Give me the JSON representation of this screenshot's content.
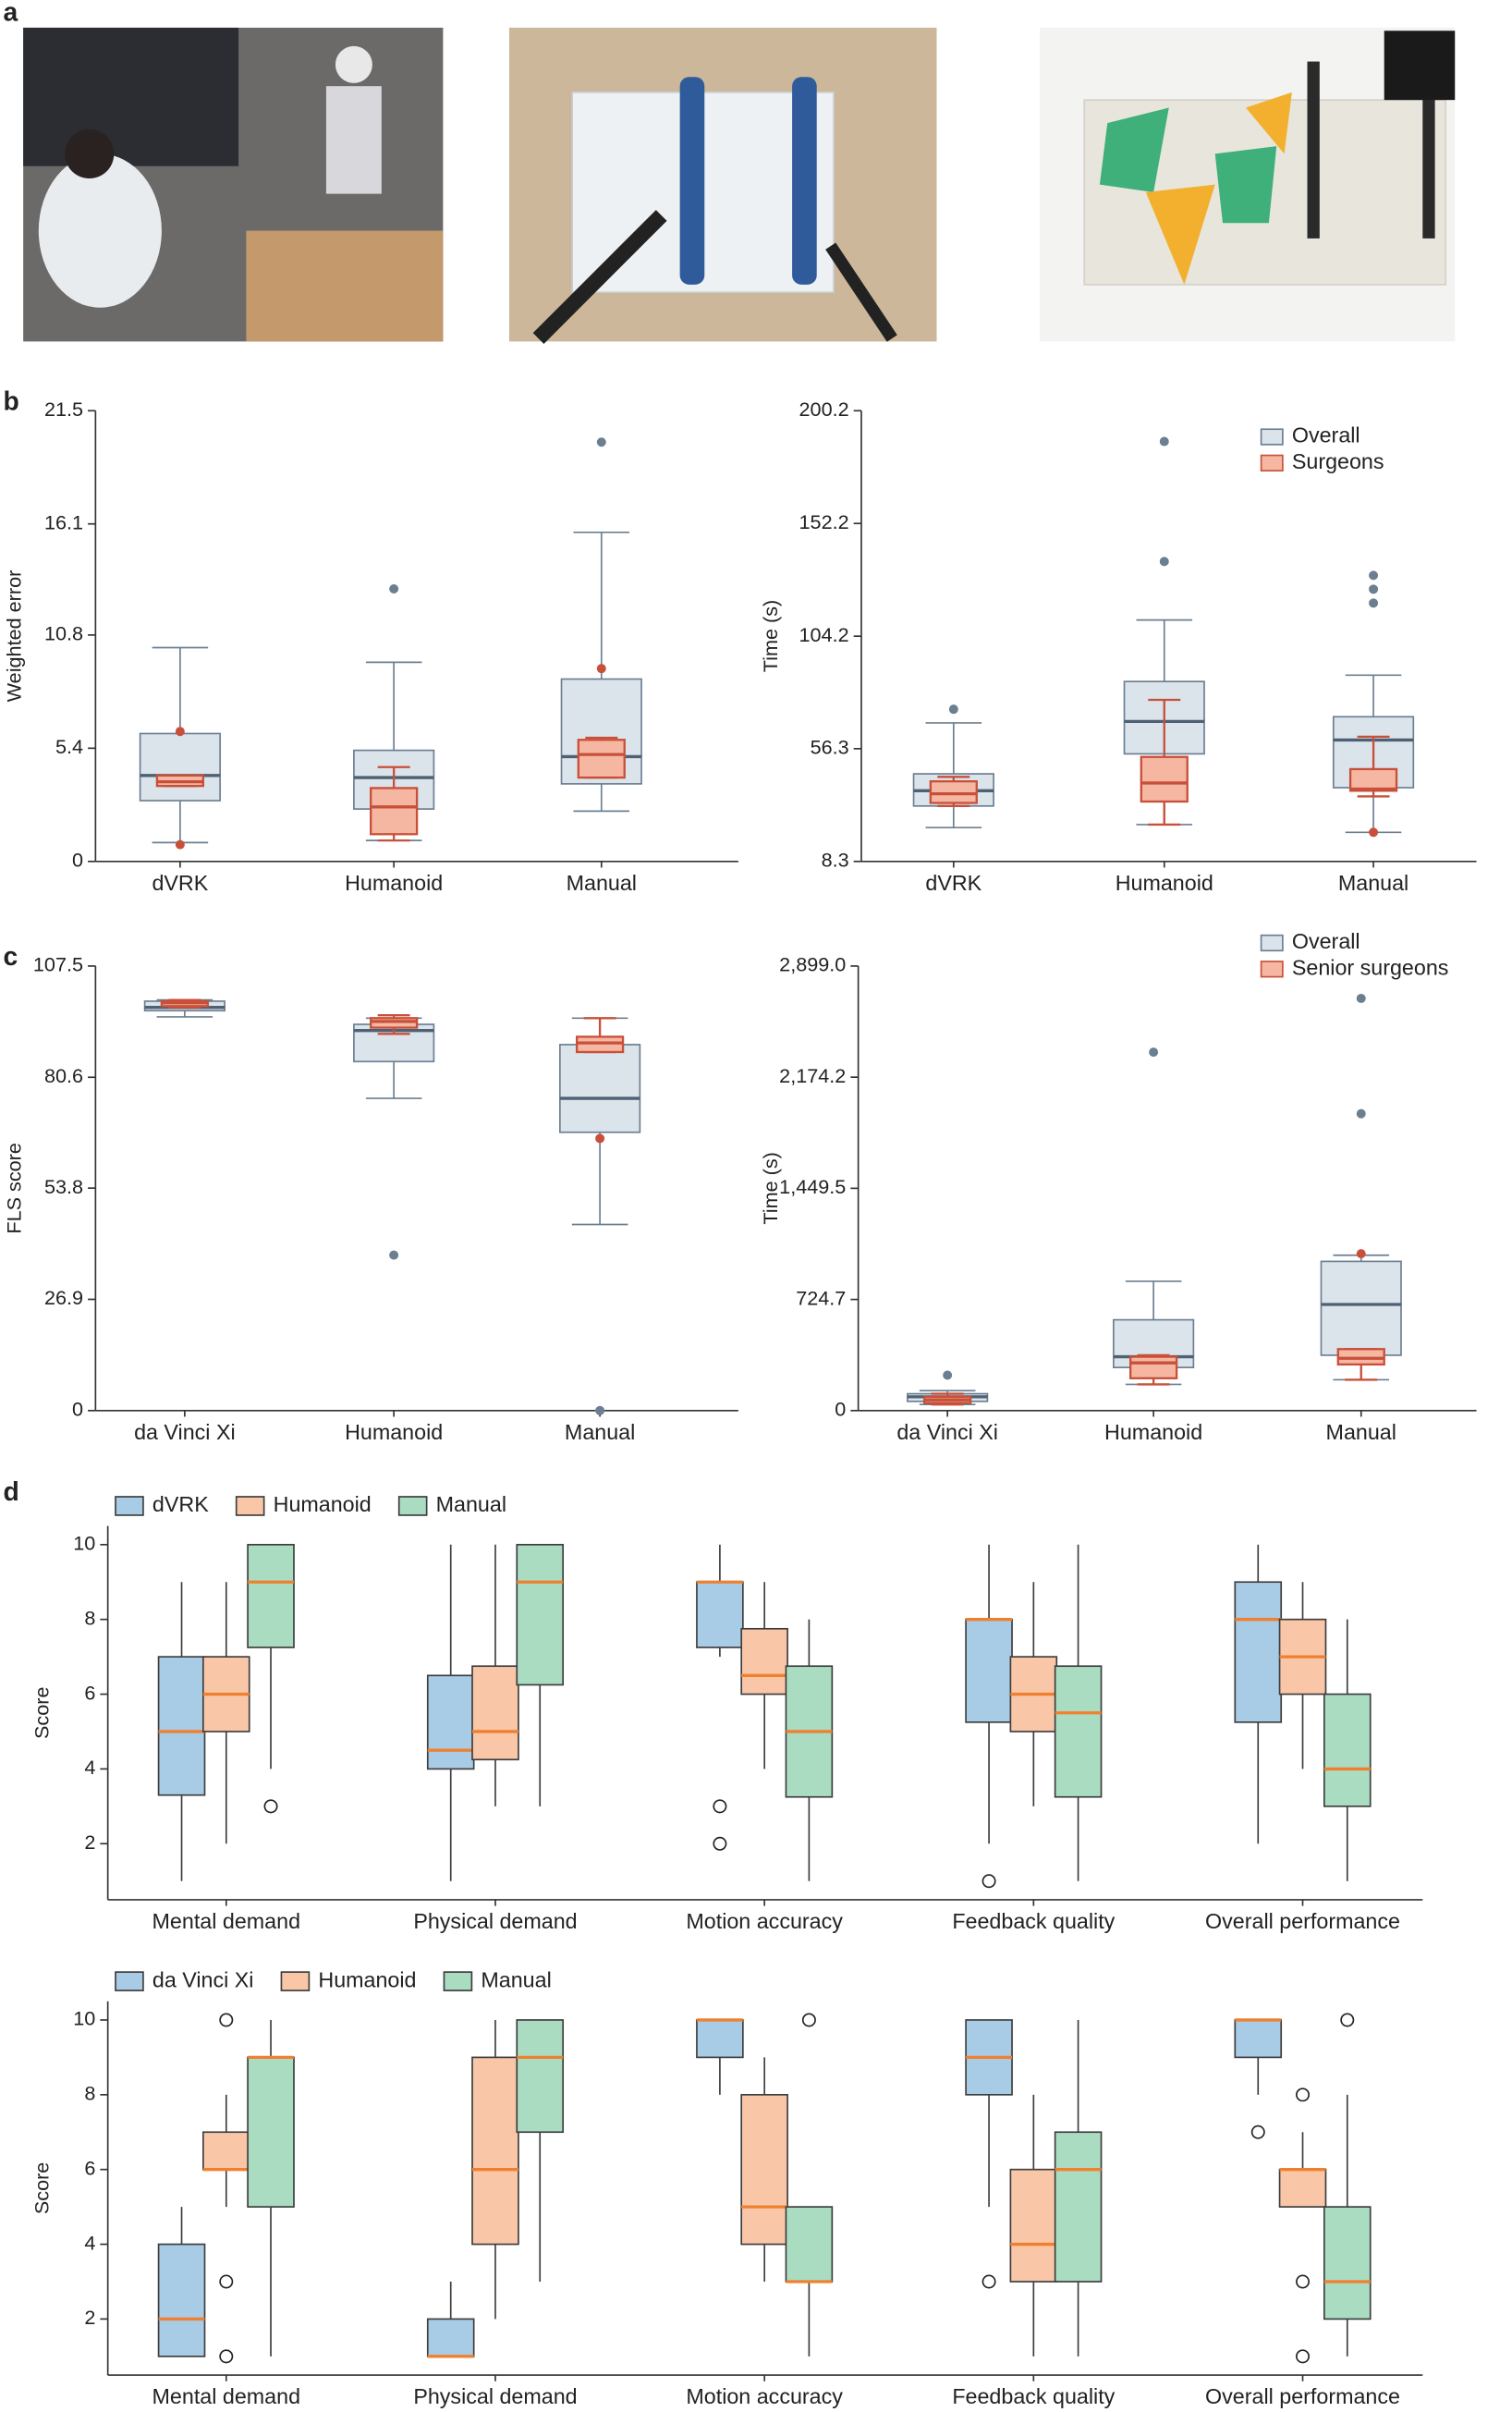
{
  "panel_labels": [
    "a",
    "b",
    "c",
    "d"
  ],
  "chart_data": [
    {
      "type": "box",
      "overlay": true,
      "ylabel": "Weighted error",
      "ylim": [
        0,
        21.5
      ],
      "yticks": [
        0,
        5.4,
        10.8,
        16.1,
        21.5
      ],
      "categories": [
        "dVRK",
        "Humanoid",
        "Manual"
      ],
      "series": [
        {
          "name": null,
          "color": "#dbe3eb",
          "edge": "#6b7f91",
          "median_color": "#4d6173",
          "boxes": [
            {
              "min": 0.9,
              "q1": 2.9,
              "median": 4.1,
              "q3": 6.1,
              "max": 10.2,
              "outliers": []
            },
            {
              "min": 1.0,
              "q1": 2.5,
              "median": 4.0,
              "q3": 5.3,
              "max": 9.5,
              "outliers": [
                13.0
              ]
            },
            {
              "min": 2.4,
              "q1": 3.7,
              "median": 5.0,
              "q3": 8.7,
              "max": 15.7,
              "outliers": [
                20.0
              ]
            }
          ]
        },
        {
          "name": null,
          "color": "#f5b7a1",
          "edge": "#c8503a",
          "median_color": "#c8503a",
          "boxes": [
            {
              "min": 3.6,
              "q1": 3.6,
              "median": 3.8,
              "q3": 4.1,
              "max": 4.1,
              "outliers": [
                6.2,
                0.8
              ]
            },
            {
              "min": 1.0,
              "q1": 1.3,
              "median": 2.6,
              "q3": 3.5,
              "max": 4.5,
              "outliers": []
            },
            {
              "min": 4.0,
              "q1": 4.0,
              "median": 5.1,
              "q3": 5.8,
              "max": 5.9,
              "outliers": [
                9.2
              ]
            }
          ]
        }
      ]
    },
    {
      "type": "box",
      "overlay": true,
      "ylabel": "Time (s)",
      "ylim": [
        8.3,
        200.2
      ],
      "yticks": [
        8.3,
        56.3,
        104.2,
        152.2,
        200.2
      ],
      "categories": [
        "dVRK",
        "Humanoid",
        "Manual"
      ],
      "series": [
        {
          "name": "Overall",
          "color": "#dbe3eb",
          "edge": "#6b7f91",
          "median_color": "#4d6173",
          "boxes": [
            {
              "min": 22.7,
              "q1": 31.9,
              "median": 38.4,
              "q3": 45.6,
              "max": 67.3,
              "outliers": [
                73.1
              ]
            },
            {
              "min": 24.0,
              "q1": 54.1,
              "median": 67.9,
              "q3": 84.9,
              "max": 111.1,
              "outliers": [
                136.0,
                187.1
              ]
            },
            {
              "min": 20.7,
              "q1": 39.7,
              "median": 60.0,
              "q3": 69.9,
              "max": 87.6,
              "outliers": [
                130.1,
                124.2,
                118.3
              ]
            }
          ]
        },
        {
          "name": "Surgeons",
          "color": "#f5b7a1",
          "edge": "#c8503a",
          "median_color": "#c8503a",
          "boxes": [
            {
              "min": 31.9,
              "q1": 33.2,
              "median": 37.1,
              "q3": 42.4,
              "max": 44.3,
              "outliers": []
            },
            {
              "min": 24.0,
              "q1": 33.8,
              "median": 41.7,
              "q3": 52.8,
              "max": 77.1,
              "outliers": []
            },
            {
              "min": 36.0,
              "q1": 38.4,
              "median": 39.1,
              "q3": 47.6,
              "max": 61.4,
              "outliers": [
                20.7
              ]
            }
          ]
        }
      ]
    },
    {
      "type": "box",
      "overlay": true,
      "ylabel": "FLS score",
      "ylim": [
        0,
        107.5
      ],
      "yticks": [
        0,
        26.9,
        53.8,
        80.6,
        107.5
      ],
      "categories": [
        "da Vinci Xi",
        "Humanoid",
        "Manual"
      ],
      "series": [
        {
          "name": null,
          "color": "#dbe3eb",
          "edge": "#6b7f91",
          "median_color": "#4d6173",
          "boxes": [
            {
              "min": 95.2,
              "q1": 96.7,
              "median": 97.5,
              "q3": 99.0,
              "max": 99.3,
              "outliers": []
            },
            {
              "min": 75.5,
              "q1": 84.4,
              "median": 91.9,
              "q3": 93.4,
              "max": 94.9,
              "outliers": [
                37.6
              ]
            },
            {
              "min": 45.0,
              "q1": 67.3,
              "median": 75.5,
              "q3": 88.5,
              "max": 94.9,
              "outliers": [
                0
              ]
            }
          ]
        },
        {
          "name": null,
          "color": "#f5b7a1",
          "edge": "#c8503a",
          "median_color": "#c8503a",
          "boxes": [
            {
              "min": 97.5,
              "q1": 97.8,
              "median": 98.6,
              "q3": 99.0,
              "max": 99.3,
              "outliers": []
            },
            {
              "min": 91.1,
              "q1": 92.6,
              "median": 94.1,
              "q3": 94.9,
              "max": 95.6,
              "outliers": []
            },
            {
              "min": 86.7,
              "q1": 86.7,
              "median": 88.9,
              "q3": 90.4,
              "max": 94.9,
              "outliers": [
                65.8
              ]
            }
          ]
        }
      ]
    },
    {
      "type": "box",
      "overlay": true,
      "ylabel": "Time (s)",
      "ylim": [
        0,
        2899.0
      ],
      "yticks": [
        0,
        724.7,
        {
          "value": 1449.5,
          "label": "1,449.5"
        },
        {
          "value": 2174.2,
          "label": "2,174.2"
        },
        {
          "value": 2899.0,
          "label": "2,899.0"
        }
      ],
      "categories": [
        "da Vinci Xi",
        "Humanoid",
        "Manual"
      ],
      "series": [
        {
          "name": "Overall",
          "color": "#dbe3eb",
          "edge": "#6b7f91",
          "median_color": "#4d6173",
          "boxes": [
            {
              "min": 40,
              "q1": 60,
              "median": 90,
              "q3": 110,
              "max": 130,
              "outliers": [
                231
              ]
            },
            {
              "min": 171,
              "q1": 281,
              "median": 351,
              "q3": 592,
              "max": 843,
              "outliers": [
                2337
              ]
            },
            {
              "min": 201,
              "q1": 361,
              "median": 692,
              "q3": 973,
              "max": 1013,
              "outliers": [
                2688,
                1936
              ]
            }
          ]
        },
        {
          "name": "Senior surgeons",
          "color": "#f5b7a1",
          "edge": "#c8503a",
          "median_color": "#c8503a",
          "boxes": [
            {
              "min": 40,
              "q1": 50,
              "median": 70,
              "q3": 90,
              "max": 110,
              "outliers": []
            },
            {
              "min": 171,
              "q1": 211,
              "median": 311,
              "q3": 351,
              "max": 361,
              "outliers": []
            },
            {
              "min": 201,
              "q1": 301,
              "median": 341,
              "q3": 401,
              "max": 401,
              "outliers": [
                1023
              ]
            }
          ]
        }
      ]
    },
    {
      "type": "box",
      "overlay": false,
      "ylabel": "Score",
      "ylim": [
        0.5,
        10.5
      ],
      "yticks": [
        2,
        4,
        6,
        8,
        10
      ],
      "median_color": "#f08030",
      "categories": [
        "Mental demand",
        "Physical demand",
        "Motion accuracy",
        "Feedback quality",
        "Overall performance"
      ],
      "series": [
        {
          "name": "dVRK",
          "color": "#a8cbe6",
          "edge": "#3d3d3d",
          "boxes": [
            {
              "min": 1,
              "q1": 3.3,
              "median": 5,
              "q3": 7,
              "max": 9,
              "outliers": []
            },
            {
              "min": 1,
              "q1": 4,
              "median": 4.5,
              "q3": 6.5,
              "max": 10,
              "outliers": []
            },
            {
              "min": 7,
              "q1": 7.25,
              "median": 9,
              "q3": 9,
              "max": 10,
              "outliers": [
                3,
                2
              ]
            },
            {
              "min": 2,
              "q1": 5.25,
              "median": 8,
              "q3": 8,
              "max": 10,
              "outliers": [
                1
              ]
            },
            {
              "min": 2,
              "q1": 5.25,
              "median": 8,
              "q3": 9,
              "max": 10,
              "outliers": []
            }
          ]
        },
        {
          "name": "Humanoid",
          "color": "#f9c7a8",
          "edge": "#3d3d3d",
          "boxes": [
            {
              "min": 2,
              "q1": 5,
              "median": 6,
              "q3": 7,
              "max": 9,
              "outliers": []
            },
            {
              "min": 3,
              "q1": 4.25,
              "median": 5,
              "q3": 6.75,
              "max": 10,
              "outliers": []
            },
            {
              "min": 4,
              "q1": 6,
              "median": 6.5,
              "q3": 7.75,
              "max": 9,
              "outliers": []
            },
            {
              "min": 3,
              "q1": 5,
              "median": 6,
              "q3": 7,
              "max": 9,
              "outliers": []
            },
            {
              "min": 4,
              "q1": 6,
              "median": 7,
              "q3": 8,
              "max": 9,
              "outliers": []
            }
          ]
        },
        {
          "name": "Manual",
          "color": "#a9dcc1",
          "edge": "#3d3d3d",
          "boxes": [
            {
              "min": 4,
              "q1": 7.25,
              "median": 9,
              "q3": 10,
              "max": 10,
              "outliers": [
                3
              ]
            },
            {
              "min": 3,
              "q1": 6.25,
              "median": 9,
              "q3": 10,
              "max": 10,
              "outliers": []
            },
            {
              "min": 1,
              "q1": 3.25,
              "median": 5,
              "q3": 6.75,
              "max": 8,
              "outliers": []
            },
            {
              "min": 1,
              "q1": 3.25,
              "median": 5.5,
              "q3": 6.75,
              "max": 10,
              "outliers": []
            },
            {
              "min": 1,
              "q1": 3,
              "median": 4,
              "q3": 6,
              "max": 8,
              "outliers": []
            }
          ]
        }
      ]
    },
    {
      "type": "box",
      "overlay": false,
      "ylabel": "Score",
      "ylim": [
        0.5,
        10.5
      ],
      "yticks": [
        2,
        4,
        6,
        8,
        10
      ],
      "median_color": "#f08030",
      "categories": [
        "Mental demand",
        "Physical demand",
        "Motion accuracy",
        "Feedback quality",
        "Overall performance"
      ],
      "series": [
        {
          "name": "da Vinci Xi",
          "color": "#a8cbe6",
          "edge": "#3d3d3d",
          "boxes": [
            {
              "min": 1,
              "q1": 1,
              "median": 2,
              "q3": 4,
              "max": 5,
              "outliers": []
            },
            {
              "min": 1,
              "q1": 1,
              "median": 1,
              "q3": 2,
              "max": 3,
              "outliers": []
            },
            {
              "min": 8,
              "q1": 9,
              "median": 10,
              "q3": 10,
              "max": 10,
              "outliers": []
            },
            {
              "min": 5,
              "q1": 8,
              "median": 9,
              "q3": 10,
              "max": 10,
              "outliers": [
                3
              ]
            },
            {
              "min": 8,
              "q1": 9,
              "median": 10,
              "q3": 10,
              "max": 10,
              "outliers": [
                7
              ]
            }
          ]
        },
        {
          "name": "Humanoid",
          "color": "#f9c7a8",
          "edge": "#3d3d3d",
          "boxes": [
            {
              "min": 5,
              "q1": 6,
              "median": 6,
              "q3": 7,
              "max": 8,
              "outliers": [
                10,
                3,
                1
              ]
            },
            {
              "min": 2,
              "q1": 4,
              "median": 6,
              "q3": 9,
              "max": 10,
              "outliers": []
            },
            {
              "min": 3,
              "q1": 4,
              "median": 5,
              "q3": 8,
              "max": 9,
              "outliers": []
            },
            {
              "min": 1,
              "q1": 3,
              "median": 4,
              "q3": 6,
              "max": 8,
              "outliers": []
            },
            {
              "min": 5,
              "q1": 5,
              "median": 6,
              "q3": 6,
              "max": 7,
              "outliers": [
                8,
                3,
                1
              ]
            }
          ]
        },
        {
          "name": "Manual",
          "color": "#a9dcc1",
          "edge": "#3d3d3d",
          "boxes": [
            {
              "min": 1,
              "q1": 5,
              "median": 9,
              "q3": 9,
              "max": 10,
              "outliers": []
            },
            {
              "min": 3,
              "q1": 7,
              "median": 9,
              "q3": 10,
              "max": 10,
              "outliers": []
            },
            {
              "min": 1,
              "q1": 3,
              "median": 3,
              "q3": 5,
              "max": 5,
              "outliers": [
                10
              ]
            },
            {
              "min": 1,
              "q1": 3,
              "median": 6,
              "q3": 7,
              "max": 10,
              "outliers": []
            },
            {
              "min": 1,
              "q1": 2,
              "median": 3,
              "q3": 5,
              "max": 8,
              "outliers": [
                10
              ]
            }
          ]
        }
      ]
    }
  ]
}
